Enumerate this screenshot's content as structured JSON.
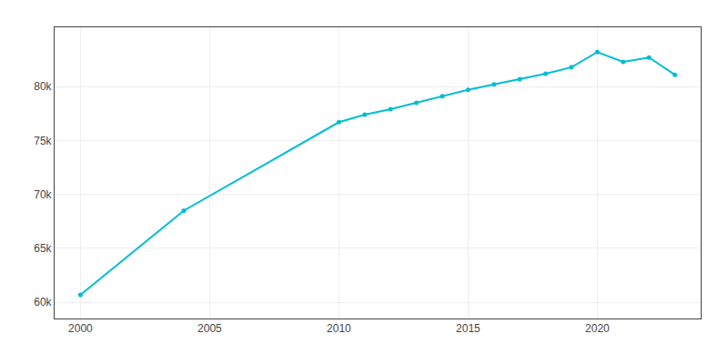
{
  "chart_data": {
    "type": "line",
    "x": [
      2000,
      2004,
      2010,
      2011,
      2012,
      2013,
      2014,
      2015,
      2016,
      2017,
      2018,
      2019,
      2020,
      2021,
      2022,
      2023
    ],
    "values": [
      60700,
      68500,
      76700,
      77400,
      77900,
      78500,
      79100,
      79700,
      80200,
      80700,
      81200,
      81800,
      83200,
      82300,
      82700,
      81100
    ],
    "color": "#00bcd4",
    "marker": "circle",
    "xlim": [
      1999.0,
      2024.0
    ],
    "ylim": [
      58500,
      85500
    ],
    "xticks": [
      2000,
      2005,
      2010,
      2015,
      2020
    ],
    "yticks": [
      {
        "value": 60000,
        "label": "60k"
      },
      {
        "value": 65000,
        "label": "65k"
      },
      {
        "value": 70000,
        "label": "70k"
      },
      {
        "value": 75000,
        "label": "75k"
      },
      {
        "value": 80000,
        "label": "80k"
      }
    ],
    "grid": true
  }
}
